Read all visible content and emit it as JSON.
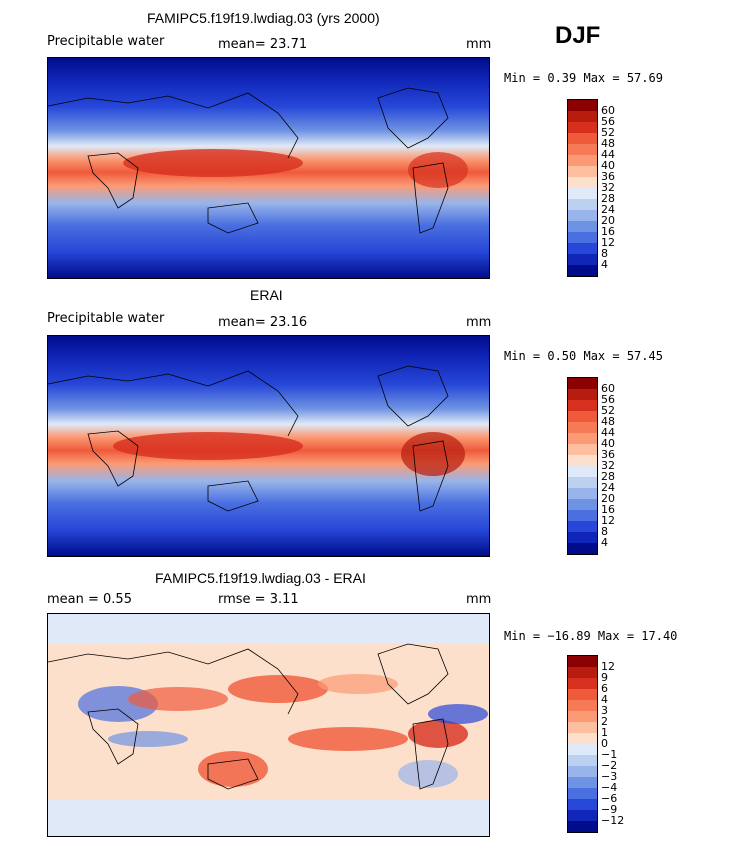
{
  "season": "DJF",
  "panels": [
    {
      "title": "FAMIPC5.f19f19.lwdiag.03 (yrs 2000)",
      "variable": "Precipitable water",
      "mean_text": "mean=   23.71",
      "units": "mm",
      "minmax_text": "Min =   0.39 Max =  57.69",
      "colorbar": {
        "ticks": [
          "60",
          "56",
          "52",
          "48",
          "44",
          "40",
          "36",
          "32",
          "28",
          "24",
          "20",
          "16",
          "12",
          "8",
          "4"
        ],
        "colors": [
          "#8b0000",
          "#b71c0e",
          "#d7301f",
          "#ef5a3a",
          "#f57a55",
          "#fb9a74",
          "#fdbf9f",
          "#fde0cc",
          "#dfe9f7",
          "#bcd0f0",
          "#98b4ea",
          "#6f93e3",
          "#4a6fe0",
          "#2647d8",
          "#1026b8",
          "#000c8c"
        ]
      }
    },
    {
      "title": "ERAI",
      "variable": "Precipitable water",
      "mean_text": "mean=   23.16",
      "units": "mm",
      "minmax_text": "Min =   0.50 Max =  57.45",
      "colorbar": {
        "ticks": [
          "60",
          "56",
          "52",
          "48",
          "44",
          "40",
          "36",
          "32",
          "28",
          "24",
          "20",
          "16",
          "12",
          "8",
          "4"
        ],
        "colors": [
          "#8b0000",
          "#b71c0e",
          "#d7301f",
          "#ef5a3a",
          "#f57a55",
          "#fb9a74",
          "#fdbf9f",
          "#fde0cc",
          "#dfe9f7",
          "#bcd0f0",
          "#98b4ea",
          "#6f93e3",
          "#4a6fe0",
          "#2647d8",
          "#1026b8",
          "#000c8c"
        ]
      }
    },
    {
      "title": "FAMIPC5.f19f19.lwdiag.03 - ERAI",
      "mean_label": "mean =    0.55",
      "rmse_label": "rmse =    3.11",
      "units": "mm",
      "minmax_text": "Min = −16.89 Max =  17.40",
      "colorbar": {
        "ticks": [
          "12",
          "9",
          "6",
          "4",
          "3",
          "2",
          "1",
          "0",
          "−1",
          "−2",
          "−3",
          "−4",
          "−6",
          "−9",
          "−12"
        ],
        "colors": [
          "#8b0000",
          "#b71c0e",
          "#d7301f",
          "#ef5a3a",
          "#f57a55",
          "#fb9a74",
          "#fdbf9f",
          "#fde0cc",
          "#dfe9f7",
          "#bcd0f0",
          "#98b4ea",
          "#6f93e3",
          "#4a6fe0",
          "#2647d8",
          "#1026b8",
          "#000c8c"
        ]
      }
    }
  ]
}
